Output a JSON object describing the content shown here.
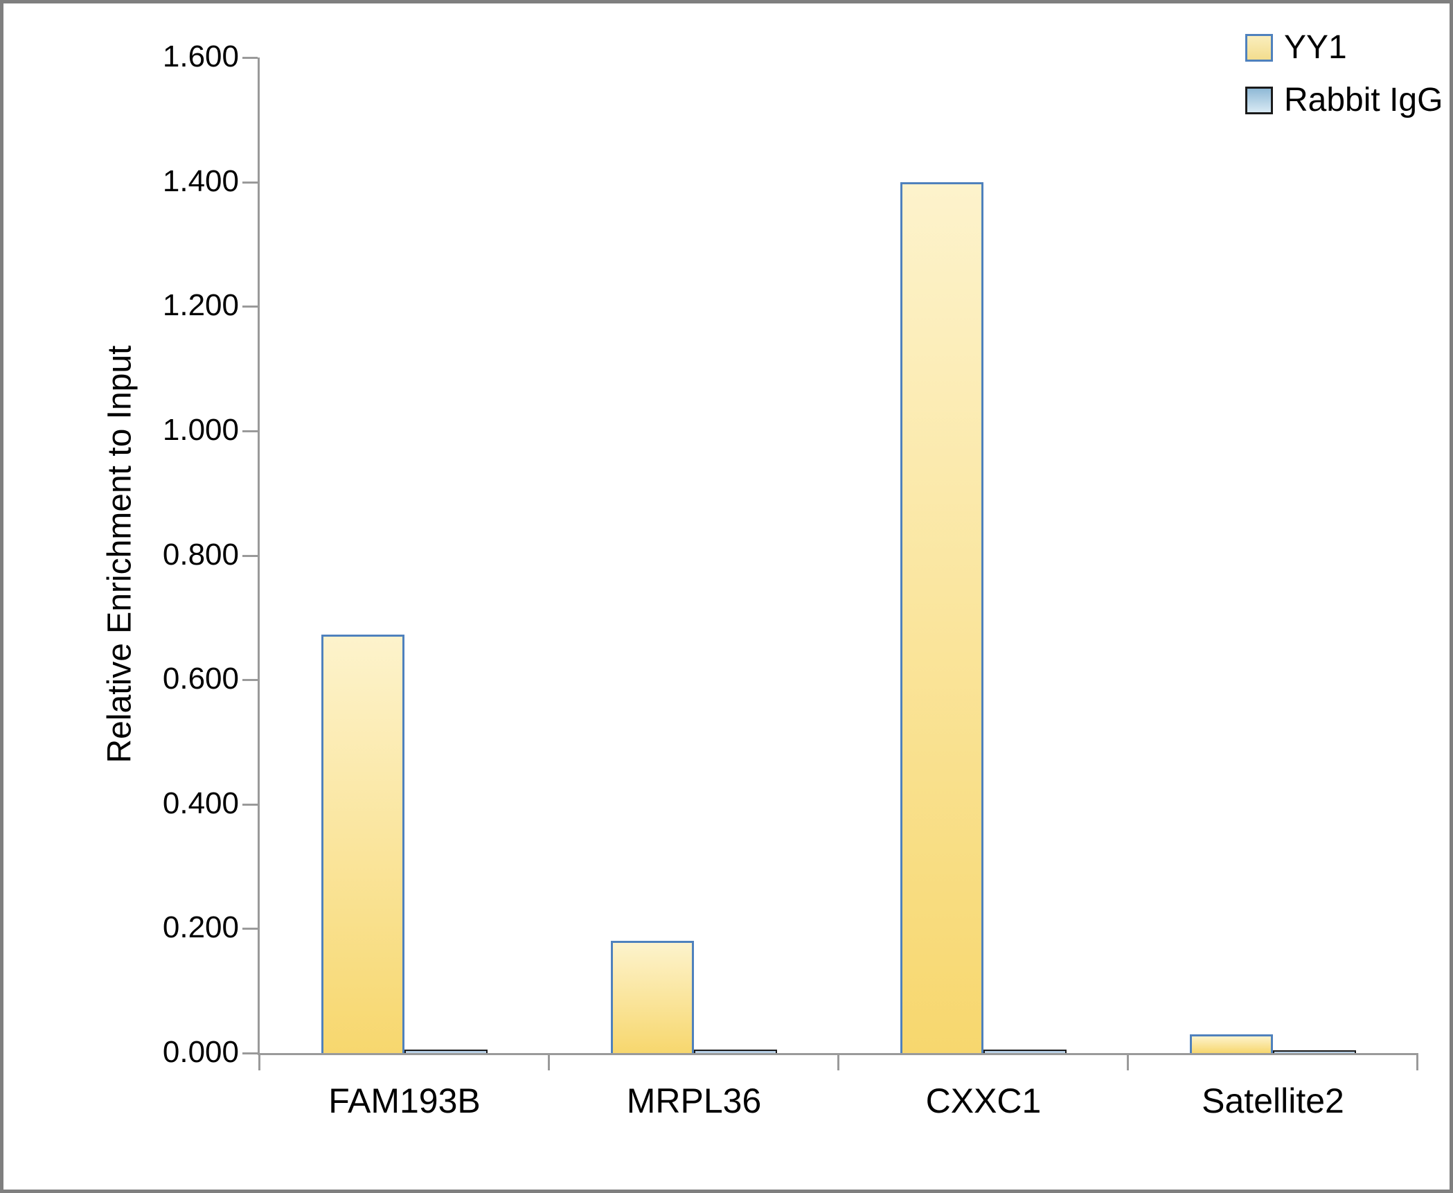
{
  "chart_data": {
    "type": "bar",
    "title": "",
    "xlabel": "",
    "ylabel": "Relative Enrichment to Input",
    "categories": [
      "FAM193B",
      "MRPL36",
      "CXXC1",
      "Satellite2"
    ],
    "series": [
      {
        "name": "YY1",
        "values": [
          0.673,
          0.18,
          1.4,
          0.03
        ],
        "fill_top": "#fdf3cc",
        "fill_bottom": "#f7d76e",
        "border": "#4f81bd",
        "swatch_top": "#faeebd",
        "swatch_bottom": "#f3dd8e",
        "swatch_border": "#4f81bd"
      },
      {
        "name": "Rabbit IgG",
        "values": [
          0.006,
          0.006,
          0.006,
          0.005
        ],
        "fill_top": "#a9c6e0",
        "fill_bottom": "#c4d9ec",
        "border": "#1a1a1a",
        "swatch_top": "#8fb9d6",
        "swatch_bottom": "#d9eaf4",
        "swatch_border": "#1a1a1a"
      }
    ],
    "ylim": [
      0,
      1.6
    ],
    "ytick_step": 0.2,
    "ytick_labels": [
      "0.000",
      "0.200",
      "0.400",
      "0.600",
      "0.800",
      "1.000",
      "1.200",
      "1.400",
      "1.600"
    ],
    "grid": false,
    "legend_position": "top-right"
  },
  "colors": {
    "axis": "#9a9a9a",
    "frame": "#7f7f7f",
    "text": "#000000",
    "background": "#ffffff"
  }
}
